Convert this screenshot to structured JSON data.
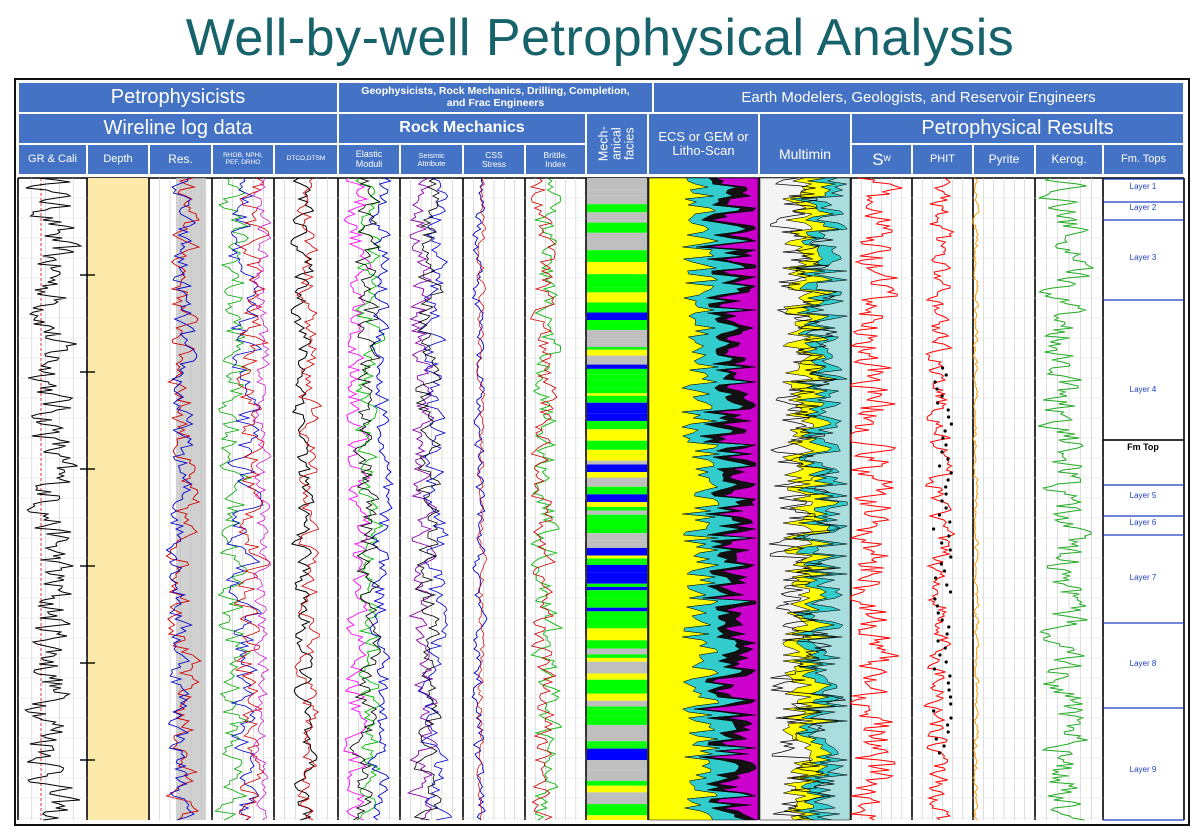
{
  "title": "Well-by-well Petrophysical Analysis",
  "header": {
    "groups": [
      {
        "label": "Petrophysicists"
      },
      {
        "label": "Geophysicists, Rock Mechanics, Drilling, Completion, and Frac Engineers"
      },
      {
        "label": "Earth Modelers, Geologists, and Reservoir Engineers"
      }
    ],
    "subgroups": [
      {
        "label": "Wireline log data"
      },
      {
        "label": "Rock Mechanics"
      },
      {
        "label": "Mech-anical facies"
      },
      {
        "label": "ECS or GEM or Litho-Scan"
      },
      {
        "label": "Multimin"
      },
      {
        "label": "Petrophysical Results"
      }
    ],
    "tracks": [
      {
        "label": "GR & Cali"
      },
      {
        "label": "Depth"
      },
      {
        "label": "Res."
      },
      {
        "label": "RHOB, NPHI, PEF, DRHO"
      },
      {
        "label": "DTCO,DTSM"
      },
      {
        "label": "Elastic Moduli"
      },
      {
        "label": "Seismic Attribute"
      },
      {
        "label": "CSS Stress"
      },
      {
        "label": "Brittle. Index"
      },
      {
        "label": "S"
      },
      {
        "label": "PHIT"
      },
      {
        "label": "Pyrite"
      },
      {
        "label": "Kerog."
      },
      {
        "label": "Fm. Tops"
      }
    ],
    "sw_subscript": "w"
  },
  "layers": [
    {
      "name": "Layer 1"
    },
    {
      "name": "Layer 2"
    },
    {
      "name": "Layer 3"
    },
    {
      "name": "Layer 4"
    },
    {
      "name": "Fm Top"
    },
    {
      "name": "Layer 5"
    },
    {
      "name": "Layer 6"
    },
    {
      "name": "Layer 7"
    },
    {
      "name": "Layer 8"
    },
    {
      "name": "Layer 9"
    }
  ],
  "colors": {
    "header_blue": "#4472c4",
    "title_teal": "#17636b",
    "depth_fill": "#fde9a9",
    "facies_green": "#00ff00",
    "facies_yellow": "#ffff00",
    "facies_gray": "#bfbfbf",
    "facies_blue": "#0000ff",
    "litho_yellow": "#ffff00",
    "litho_cyan": "#33cccc",
    "litho_magenta": "#cc00cc",
    "sw_red": "#ff0000",
    "kerogen_green": "#22aa22",
    "pyrite_orange": "#ff9900",
    "layer_text_blue": "#1f3fbf"
  }
}
